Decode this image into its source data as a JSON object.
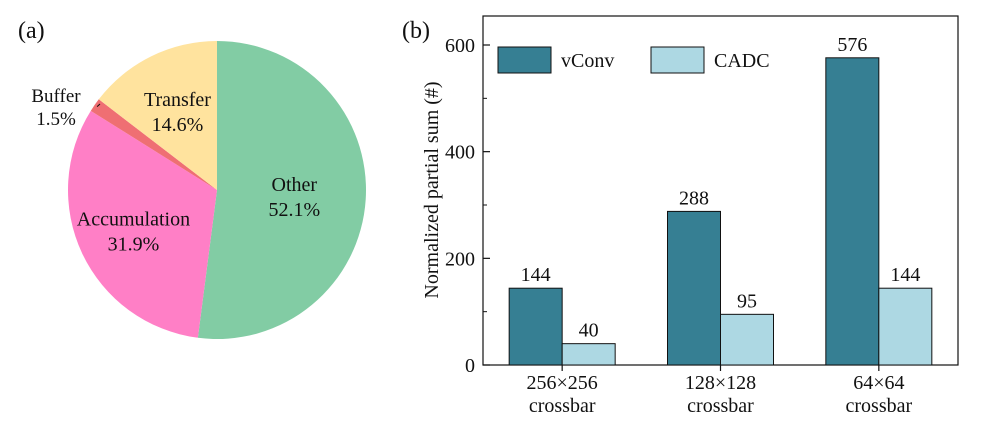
{
  "chart_data": [
    {
      "type": "pie",
      "panel_label": "(a)",
      "title": "",
      "slices": [
        {
          "label": "Other",
          "value": 52.1,
          "text": "52.1%",
          "color": "#82CCA4"
        },
        {
          "label": "Accumulation",
          "value": 31.9,
          "text": "31.9%",
          "color": "#FF7FC6"
        },
        {
          "label": "Buffer",
          "value": 1.5,
          "text": "1.5%",
          "color": "#EF6F73"
        },
        {
          "label": "Transfer",
          "value": 14.6,
          "text": "14.6%",
          "color": "#FFE39E"
        }
      ]
    },
    {
      "type": "bar",
      "panel_label": "(b)",
      "title": "",
      "categories": [
        {
          "line1": "256×256",
          "line2": "crossbar"
        },
        {
          "line1": "128×128",
          "line2": "crossbar"
        },
        {
          "line1": "64×64",
          "line2": "crossbar"
        }
      ],
      "series": [
        {
          "name": "vConv",
          "values": [
            144,
            288,
            576
          ],
          "labels": [
            "144",
            "288",
            "576"
          ],
          "color": "#367F93"
        },
        {
          "name": "CADC",
          "values": [
            40,
            95,
            144
          ],
          "labels": [
            "40",
            "95",
            "144"
          ],
          "color": "#ADD8E3"
        }
      ],
      "xlabel": "",
      "ylabel": "Normalized partial sum (#)",
      "ylim": [
        0,
        600
      ],
      "yticks": [
        0,
        200,
        400,
        600
      ],
      "grid": false,
      "legend_position": "top-left"
    }
  ]
}
